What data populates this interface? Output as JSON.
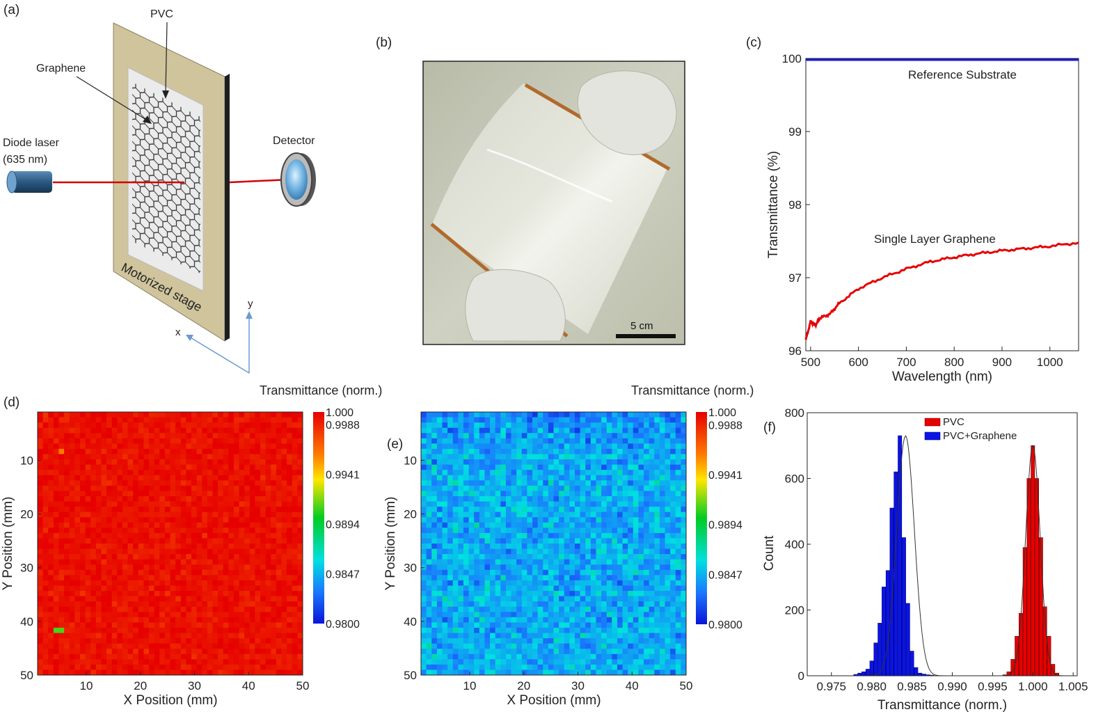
{
  "figure": {
    "panels": {
      "a": {
        "label": "(a)",
        "pvc": "PVC",
        "graphene": "Graphene",
        "laser": "Diode laser",
        "laser_wavelength": "(635 nm)",
        "detector": "Detector",
        "stage": "Motorized stage",
        "axis_x": "x",
        "axis_y": "y"
      },
      "b": {
        "label": "(b)",
        "scale_bar": "5 cm"
      },
      "c": {
        "label": "(c)"
      },
      "d": {
        "label": "(d)",
        "colorbar_title": "Transmittance (norm.)"
      },
      "e": {
        "label": "(e)",
        "colorbar_title": "Transmittance (norm.)"
      },
      "f": {
        "label": "(f)"
      }
    },
    "colors": {
      "red": "#e60000",
      "blue": "#0a14e6",
      "reference": "#1a1ae0",
      "laser": "#d40000",
      "stage": "#cfc49c"
    }
  },
  "chart_data": [
    {
      "id": "c",
      "type": "line",
      "xlabel": "Wavelength (nm)",
      "ylabel": "Transmittance (%)",
      "xlim": [
        490,
        1060
      ],
      "ylim": [
        96,
        100
      ],
      "xticks": [
        500,
        600,
        700,
        800,
        900,
        1000
      ],
      "xtick_labels": [
        "500",
        "600",
        "700",
        "800",
        "900",
        "1000"
      ],
      "yticks": [
        96,
        97,
        98,
        99,
        100
      ],
      "ytick_labels": [
        "96",
        "97",
        "98",
        "99",
        "100"
      ],
      "annotations": [
        "Reference Substrate",
        "Single Layer Graphene"
      ],
      "series": [
        {
          "name": "Reference Substrate",
          "x": [
            490,
            520,
            560,
            600,
            650,
            700,
            800,
            900,
            1000,
            1060
          ],
          "y": [
            100.05,
            100.03,
            100.05,
            100.02,
            100.04,
            100.02,
            100.01,
            100.02,
            100.0,
            99.99
          ]
        },
        {
          "name": "Single Layer Graphene",
          "x": [
            490,
            500,
            510,
            520,
            540,
            560,
            600,
            650,
            700,
            750,
            800,
            850,
            900,
            950,
            1000,
            1060
          ],
          "y": [
            96.15,
            96.4,
            96.35,
            96.45,
            96.5,
            96.65,
            96.85,
            97.0,
            97.12,
            97.22,
            97.28,
            97.33,
            97.37,
            97.4,
            97.43,
            97.48
          ]
        }
      ]
    },
    {
      "id": "d",
      "type": "heatmap",
      "xlabel": "X Position (mm)",
      "ylabel": "Y Position (mm)",
      "xlim": [
        1,
        50
      ],
      "ylim": [
        50,
        1
      ],
      "xticks": [
        10,
        20,
        30,
        40,
        50
      ],
      "xtick_labels": [
        "10",
        "20",
        "30",
        "40",
        "50"
      ],
      "yticks": [
        10,
        20,
        30,
        40,
        50
      ],
      "ytick_labels": [
        "10",
        "20",
        "30",
        "40",
        "50"
      ],
      "grid_size": [
        50,
        50
      ],
      "color_range": [
        0.98,
        1.0
      ],
      "colorbar_ticks": [
        "1.000",
        "0.9988",
        "0.9941",
        "0.9894",
        "0.9847",
        "0.9800"
      ],
      "colorbar_values": [
        1.0,
        0.9988,
        0.9941,
        0.9894,
        0.9847,
        0.98
      ],
      "mean": 0.9995,
      "spread": 0.0006,
      "outliers": [
        {
          "x": 5,
          "y": 42,
          "v": 0.991
        },
        {
          "x": 4,
          "y": 42,
          "v": 0.991
        },
        {
          "x": 5,
          "y": 8,
          "v": 0.996
        }
      ]
    },
    {
      "id": "e",
      "type": "heatmap",
      "xlabel": "X Position (mm)",
      "ylabel": "Y Position (mm)",
      "xlim": [
        1,
        50
      ],
      "ylim": [
        50,
        1
      ],
      "xticks": [
        10,
        20,
        30,
        40,
        50
      ],
      "xtick_labels": [
        "10",
        "20",
        "30",
        "40",
        "50"
      ],
      "yticks": [
        10,
        20,
        30,
        40,
        50
      ],
      "ytick_labels": [
        "10",
        "20",
        "30",
        "40",
        "50"
      ],
      "grid_size": [
        50,
        50
      ],
      "color_range": [
        0.98,
        1.0
      ],
      "colorbar_ticks": [
        "1.000",
        "0.9988",
        "0.9941",
        "0.9894",
        "0.9847",
        "0.9800"
      ],
      "colorbar_values": [
        1.0,
        0.9988,
        0.9941,
        0.9894,
        0.9847,
        0.98
      ],
      "mean": 0.9845,
      "spread": 0.0015
    },
    {
      "id": "f",
      "type": "bar",
      "xlabel": "Transmittance (norm.)",
      "ylabel": "Count",
      "xlim": [
        0.972,
        1.0055
      ],
      "ylim": [
        0,
        800
      ],
      "xticks": [
        0.975,
        0.98,
        0.985,
        0.99,
        0.995,
        1.0,
        1.005
      ],
      "xtick_labels": [
        "0.975",
        "0.980",
        "0.985",
        "0.990",
        "0.995",
        "1.000",
        "1.005"
      ],
      "yticks": [
        0,
        200,
        400,
        600,
        800
      ],
      "ytick_labels": [
        "0",
        "200",
        "400",
        "600",
        "800"
      ],
      "legend": [
        "PVC",
        "PVC+Graphene"
      ],
      "bin_width": 0.0005,
      "series": [
        {
          "name": "PVC",
          "centers": [
            0.9965,
            0.997,
            0.9975,
            0.998,
            0.9985,
            0.999,
            0.9995,
            1.0,
            1.0005,
            1.001,
            1.0015,
            1.002,
            1.0025,
            1.003
          ],
          "values": [
            3,
            12,
            50,
            120,
            190,
            390,
            600,
            700,
            600,
            420,
            210,
            120,
            35,
            8
          ]
        },
        {
          "name": "PVC+Graphene",
          "centers": [
            0.978,
            0.9785,
            0.979,
            0.9795,
            0.98,
            0.9805,
            0.981,
            0.9815,
            0.982,
            0.9825,
            0.983,
            0.9835,
            0.984,
            0.9845,
            0.985,
            0.9855,
            0.986,
            0.9865,
            0.987,
            0.9875
          ],
          "values": [
            4,
            8,
            12,
            20,
            45,
            100,
            160,
            270,
            320,
            510,
            620,
            730,
            420,
            220,
            75,
            25,
            8,
            5,
            3,
            2
          ]
        }
      ],
      "fits": [
        {
          "name": "PVC fit",
          "mean": 1.0,
          "sigma": 0.0009,
          "amplitude": 700
        },
        {
          "name": "PVC+Graphene fit",
          "mean": 0.9842,
          "sigma": 0.0011,
          "amplitude": 730
        }
      ]
    }
  ]
}
